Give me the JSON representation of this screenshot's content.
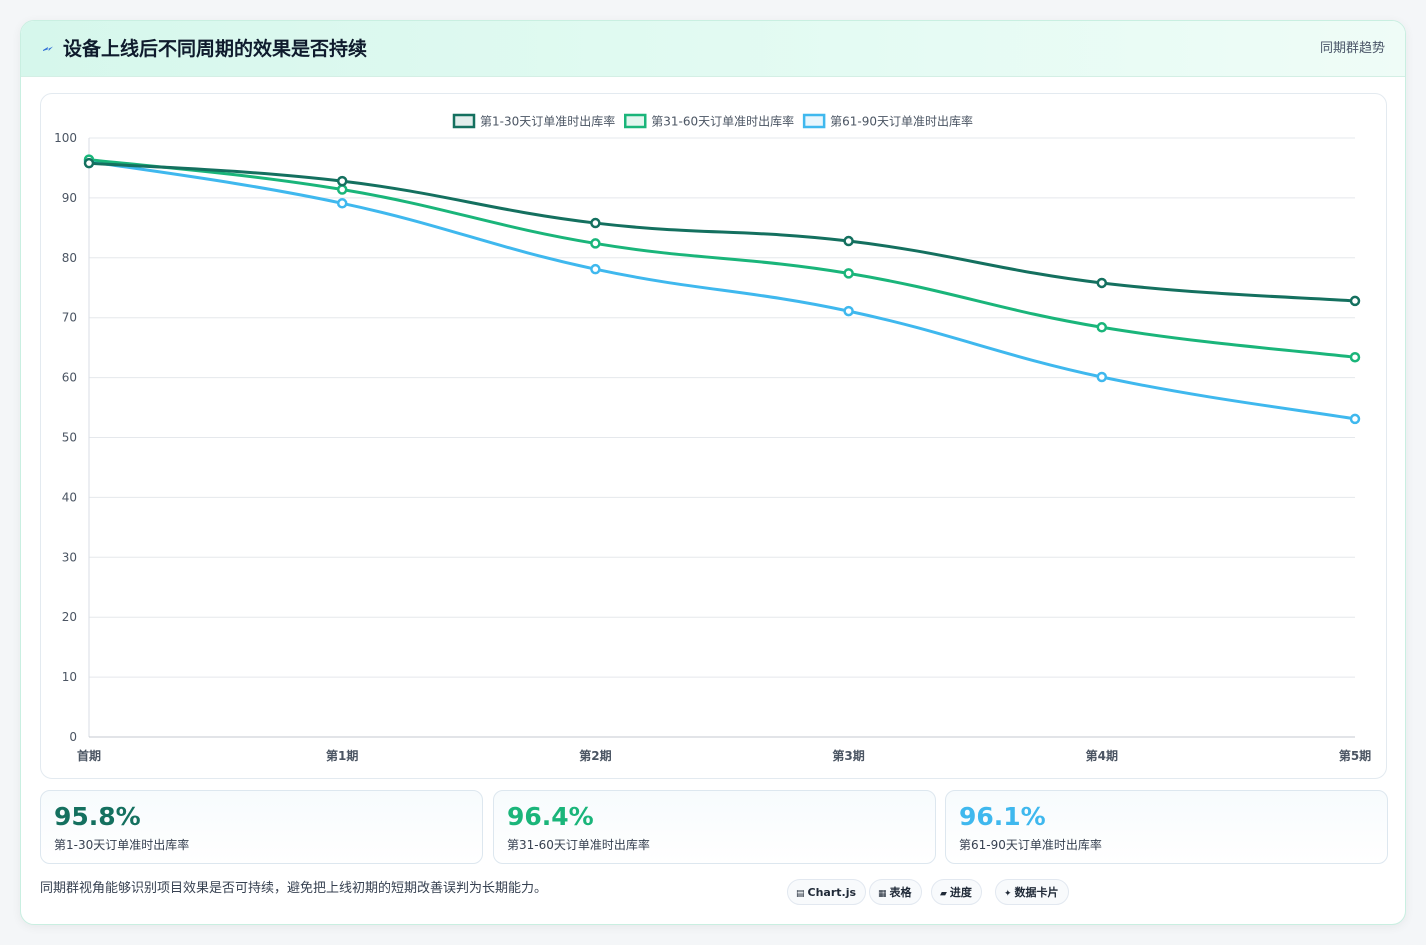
{
  "header": {
    "title": "设备上线后不同周期的效果是否持续",
    "tag": "同期群趋势",
    "icon": "lightning-icon"
  },
  "chart_data": {
    "type": "line",
    "title": "",
    "xlabel": "",
    "ylabel": "",
    "categories": [
      "首期",
      "第1期",
      "第2期",
      "第3期",
      "第4期",
      "第5期"
    ],
    "ylim": [
      0,
      100
    ],
    "yticks": [
      0,
      10,
      20,
      30,
      40,
      50,
      60,
      70,
      80,
      90,
      100
    ],
    "grid": true,
    "legend_position": "top",
    "series": [
      {
        "name": "第1-30天订单准时出库率",
        "color": "#14705f",
        "values": [
          95.8,
          92.8,
          85.8,
          82.8,
          75.8,
          72.8
        ]
      },
      {
        "name": "第31-60天订单准时出库率",
        "color": "#1ab57a",
        "values": [
          96.4,
          91.4,
          82.4,
          77.4,
          68.4,
          63.4
        ]
      },
      {
        "name": "第61-90天订单准时出库率",
        "color": "#3fb8ee",
        "values": [
          96.1,
          89.1,
          78.1,
          71.1,
          60.1,
          53.1
        ]
      }
    ]
  },
  "stats": [
    {
      "value": "95.8%",
      "label": "第1-30天订单准时出库率",
      "color": "#14705f"
    },
    {
      "value": "96.4%",
      "label": "第31-60天订单准时出库率",
      "color": "#1ab57a"
    },
    {
      "value": "96.1%",
      "label": "第61-90天订单准时出库率",
      "color": "#3fb8ee"
    }
  ],
  "footnote": "同期群视角能够识别项目效果是否可持续，避免把上线初期的短期改善误判为长期能力。",
  "chips": [
    {
      "icon": "▤",
      "icon_name": "chart-icon",
      "label": "Chart.js"
    },
    {
      "icon": "▦",
      "icon_name": "table-icon",
      "label": "表格"
    },
    {
      "icon": "▰",
      "icon_name": "progress-icon",
      "label": "进度"
    },
    {
      "icon": "✦",
      "icon_name": "sparkle-icon",
      "label": "数据卡片"
    }
  ]
}
